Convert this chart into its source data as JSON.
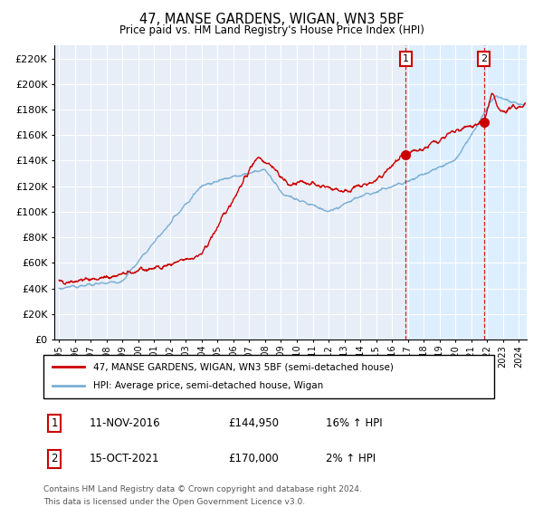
{
  "title": "47, MANSE GARDENS, WIGAN, WN3 5BF",
  "subtitle": "Price paid vs. HM Land Registry's House Price Index (HPI)",
  "legend_line1": "47, MANSE GARDENS, WIGAN, WN3 5BF (semi-detached house)",
  "legend_line2": "HPI: Average price, semi-detached house, Wigan",
  "footer1": "Contains HM Land Registry data © Crown copyright and database right 2024.",
  "footer2": "This data is licensed under the Open Government Licence v3.0.",
  "annotation1_label": "1",
  "annotation1_date": "11-NOV-2016",
  "annotation1_price": "£144,950",
  "annotation1_hpi": "16% ↑ HPI",
  "annotation2_label": "2",
  "annotation2_date": "15-OCT-2021",
  "annotation2_price": "£170,000",
  "annotation2_hpi": "2% ↑ HPI",
  "event1_x": 2016.87,
  "event1_y": 144950,
  "event2_x": 2021.79,
  "event2_y": 170000,
  "red_color": "#cc0000",
  "blue_color": "#7aafd4",
  "shade_color": "#ddeeff",
  "annotation_box_color": "#cc0000",
  "vline_color": "#cc0000",
  "background_color": "#ffffff",
  "plot_bg_color": "#e8eef8",
  "grid_color": "#ffffff",
  "ylim": [
    0,
    230000
  ],
  "xlim": [
    1994.7,
    2024.5
  ],
  "yticks": [
    0,
    20000,
    40000,
    60000,
    80000,
    100000,
    120000,
    140000,
    160000,
    180000,
    200000,
    220000
  ],
  "xticks": [
    1995,
    1996,
    1997,
    1998,
    1999,
    2000,
    2001,
    2002,
    2003,
    2004,
    2005,
    2006,
    2007,
    2008,
    2009,
    2010,
    2011,
    2012,
    2013,
    2014,
    2015,
    2016,
    2017,
    2018,
    2019,
    2020,
    2021,
    2022,
    2023,
    2024
  ]
}
